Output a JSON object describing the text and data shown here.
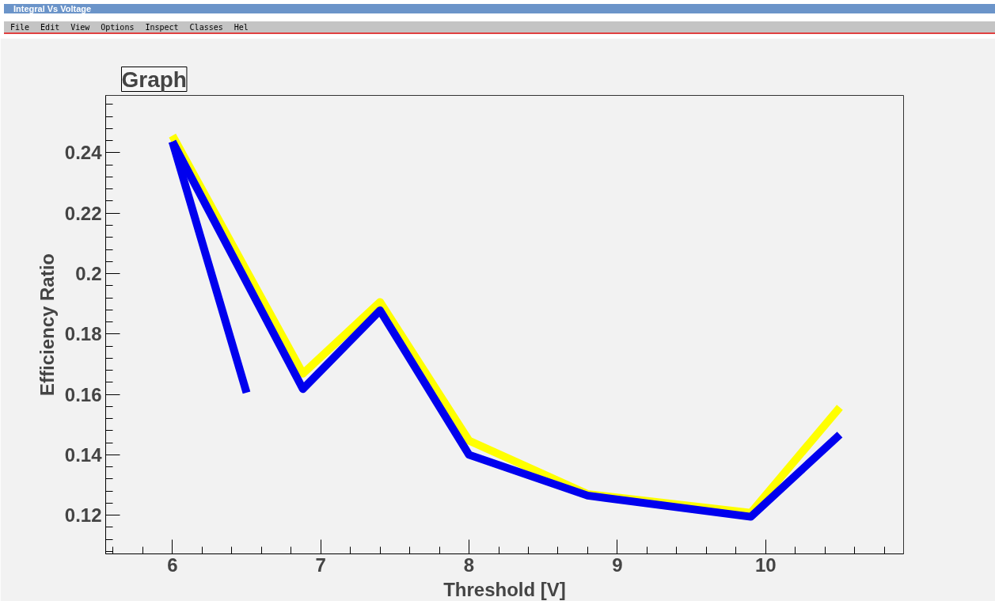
{
  "chart_data": {
    "type": "line",
    "title": "Graph",
    "xlabel": "Threshold [V]",
    "ylabel": "Efficiency Ratio",
    "annotations": [
      "Integral Vs Voltage",
      "File",
      "Edit",
      "View",
      "Options",
      "Inspect",
      "Classes",
      "Hel"
    ],
    "series": [
      {
        "color": "#ffff00",
        "x": [
          6,
          6.88,
          7.4,
          8,
          8.8,
          9.9,
          10.5
        ],
        "values": [
          0.2457,
          0.1669,
          0.1906,
          0.1447,
          0.127,
          0.1208,
          0.1557
        ]
      },
      {
        "color": "#0000ee",
        "x": [
          6,
          6.88,
          7.4,
          8,
          8.8,
          9.9,
          10.5
        ],
        "values": [
          0.2437,
          0.1618,
          0.1878,
          0.14,
          0.1265,
          0.1195,
          0.1467
        ]
      },
      {
        "color": "#0000ee",
        "x": [
          6,
          6.5
        ],
        "values": [
          0.2437,
          0.1606
        ]
      }
    ],
    "xlim": [
      5.55,
      10.93
    ],
    "ylim": [
      0.1072,
      0.259
    ],
    "xticks": [
      6,
      7,
      8,
      9,
      10
    ],
    "yticks": [
      0.12,
      0.14,
      0.16,
      0.18,
      0.2,
      0.22,
      0.24
    ],
    "grid": false,
    "marker": "none",
    "line_style": "solid"
  }
}
